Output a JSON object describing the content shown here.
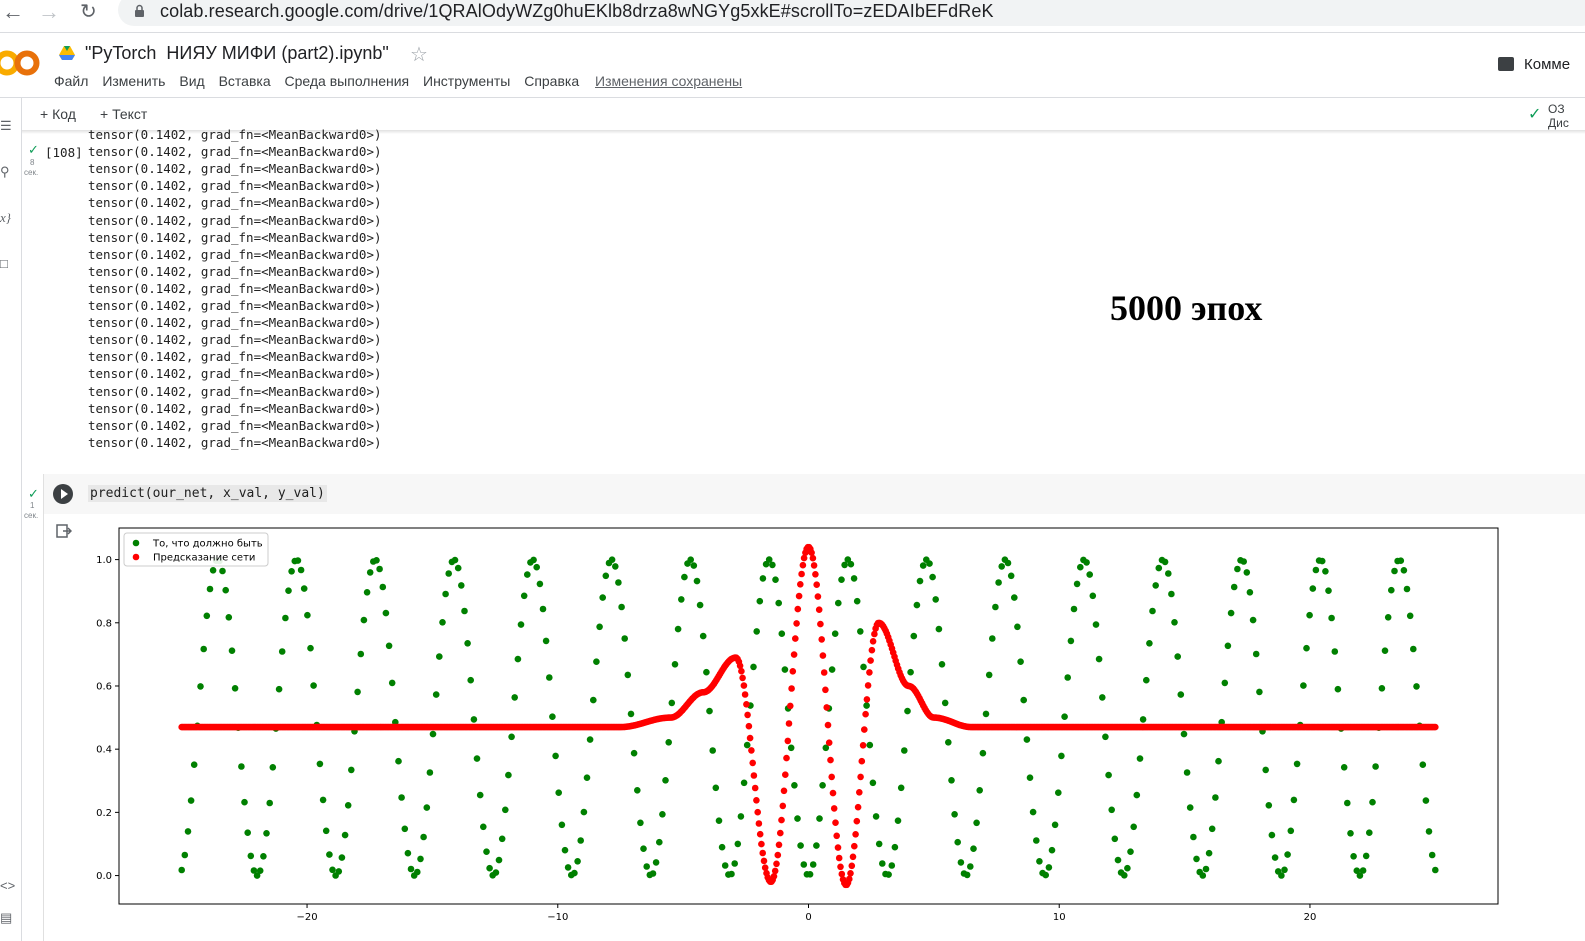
{
  "browser": {
    "url": "colab.research.google.com/drive/1QRAlOdyWZg0huEKlb8drza8wNGYg5xkE#scrollTo=zEDAIbEFdReK"
  },
  "app": {
    "title": "\"PyTorch  НИЯУ МИФИ (part2).ipynb\"",
    "menu": [
      "Файл",
      "Изменить",
      "Вид",
      "Вставка",
      "Среда выполнения",
      "Инструменты",
      "Справка"
    ],
    "saved_status": "Изменения сохранены",
    "comments_label": "Комме",
    "toolbar": {
      "add_code": "+ Код",
      "add_text": "+ Текст"
    },
    "resources_line1": "ОЗ",
    "resources_line2": "Дис"
  },
  "prev_cell": {
    "exec_count": "[108]",
    "duration_num": "8",
    "duration_unit": "сек.",
    "output_lines": [
      "tensor(0.1402, grad_fn=<MeanBackward0>)",
      "tensor(0.1402, grad_fn=<MeanBackward0>)",
      "tensor(0.1402, grad_fn=<MeanBackward0>)",
      "tensor(0.1402, grad_fn=<MeanBackward0>)",
      "tensor(0.1402, grad_fn=<MeanBackward0>)",
      "tensor(0.1402, grad_fn=<MeanBackward0>)",
      "tensor(0.1402, grad_fn=<MeanBackward0>)",
      "tensor(0.1402, grad_fn=<MeanBackward0>)",
      "tensor(0.1402, grad_fn=<MeanBackward0>)",
      "tensor(0.1402, grad_fn=<MeanBackward0>)",
      "tensor(0.1402, grad_fn=<MeanBackward0>)",
      "tensor(0.1402, grad_fn=<MeanBackward0>)",
      "tensor(0.1402, grad_fn=<MeanBackward0>)",
      "tensor(0.1402, grad_fn=<MeanBackward0>)",
      "tensor(0.1402, grad_fn=<MeanBackward0>)",
      "tensor(0.1402, grad_fn=<MeanBackward0>)",
      "tensor(0.1402, grad_fn=<MeanBackward0>)",
      "tensor(0.1402, grad_fn=<MeanBackward0>)",
      "tensor(0.1402, grad_fn=<MeanBackward0>)"
    ]
  },
  "annotation": "5000 эпох",
  "cell": {
    "code": "predict(our_net, x_val, y_val)",
    "duration_num": "1",
    "duration_unit": "сек."
  },
  "chart_data": {
    "type": "scatter",
    "xlim": [
      -27.5,
      27.5
    ],
    "ylim": [
      -0.09,
      1.1
    ],
    "xticks": [
      -20,
      -10,
      0,
      10,
      20
    ],
    "xtick_labels": [
      "−20",
      "−10",
      "0",
      "10",
      "20"
    ],
    "yticks": [
      0.0,
      0.2,
      0.4,
      0.6,
      0.8,
      1.0
    ],
    "ytick_labels": [
      "0.0",
      "0.2",
      "0.4",
      "0.6",
      "0.8",
      "1.0"
    ],
    "legend_position": "top-left",
    "series": [
      {
        "name": "То, что должно быть",
        "color": "#008000",
        "x_range": [
          -25,
          25
        ],
        "n_points": 400,
        "y_expression": "sin(x)^2 sampled uniformly",
        "y_min": 0.0,
        "y_max": 1.0
      },
      {
        "name": "Предсказание сети",
        "color": "#ff0000",
        "x_range": [
          -25,
          25
        ],
        "n_points": 1000,
        "baseline": 0.47,
        "features": [
          {
            "x": -2.9,
            "y": 0.69
          },
          {
            "x": -1.5,
            "y": -0.02
          },
          {
            "x": 0.0,
            "y": 1.04
          },
          {
            "x": 1.5,
            "y": -0.03
          },
          {
            "x": 2.8,
            "y": 0.8
          },
          {
            "x": 6.5,
            "y": 0.47
          }
        ]
      }
    ]
  }
}
